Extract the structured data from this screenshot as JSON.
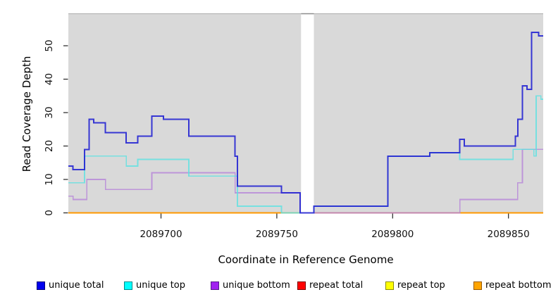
{
  "chart_data": {
    "type": "line",
    "step": true,
    "title": "",
    "xlabel": "Coordinate in Reference Genome",
    "ylabel": "Read Coverage Depth",
    "xlim": [
      2089660,
      2089865
    ],
    "ylim": [
      0,
      58
    ],
    "x_ticks": [
      2089700,
      2089750,
      2089800,
      2089850
    ],
    "y_ticks": [
      0,
      10,
      20,
      30,
      40,
      50
    ],
    "grid": false,
    "plot_background": "#d9d9d9",
    "no_data_gap": {
      "x_start": 2089760,
      "x_end": 2089766
    },
    "series": [
      {
        "name": "repeat total",
        "color": "#e02020",
        "width": 1.5,
        "opacity": 1,
        "above_gap_mask": false,
        "points": [
          [
            2089660,
            0
          ],
          [
            2089865,
            0
          ]
        ]
      },
      {
        "name": "repeat top",
        "color": "#ffff00",
        "width": 1.5,
        "opacity": 1,
        "above_gap_mask": false,
        "points": [
          [
            2089660,
            0
          ],
          [
            2089865,
            0
          ]
        ]
      },
      {
        "name": "repeat bottom",
        "color": "#ff9800",
        "width": 2,
        "opacity": 1,
        "above_gap_mask": false,
        "points": [
          [
            2089660,
            0
          ],
          [
            2089865,
            0
          ]
        ]
      },
      {
        "name": "unique bottom",
        "color": "#b583d8",
        "width": 1.7,
        "opacity": 0.8,
        "above_gap_mask": false,
        "points": [
          [
            2089660,
            5
          ],
          [
            2089662,
            4
          ],
          [
            2089668,
            10
          ],
          [
            2089676,
            7
          ],
          [
            2089696,
            12
          ],
          [
            2089732,
            6
          ],
          [
            2089760,
            0
          ],
          [
            2089829,
            4
          ],
          [
            2089854,
            9
          ],
          [
            2089856,
            19
          ],
          [
            2089865,
            19
          ]
        ]
      },
      {
        "name": "unique top",
        "color": "#5ce1e1",
        "width": 1.8,
        "opacity": 0.8,
        "above_gap_mask": false,
        "points": [
          [
            2089660,
            9
          ],
          [
            2089667,
            17
          ],
          [
            2089685,
            14
          ],
          [
            2089690,
            16
          ],
          [
            2089712,
            11
          ],
          [
            2089733,
            2
          ],
          [
            2089752,
            0
          ],
          [
            2089766,
            2
          ],
          [
            2089798,
            17
          ],
          [
            2089816,
            18
          ],
          [
            2089829,
            16
          ],
          [
            2089852,
            19
          ],
          [
            2089861,
            17
          ],
          [
            2089862,
            35
          ],
          [
            2089864,
            34
          ],
          [
            2089865,
            34
          ]
        ]
      },
      {
        "name": "unique total",
        "color": "#2323d2",
        "width": 2,
        "opacity": 0.9,
        "above_gap_mask": true,
        "points": [
          [
            2089660,
            14
          ],
          [
            2089662,
            13
          ],
          [
            2089667,
            19
          ],
          [
            2089669,
            28
          ],
          [
            2089671,
            27
          ],
          [
            2089676,
            24
          ],
          [
            2089685,
            21
          ],
          [
            2089690,
            23
          ],
          [
            2089696,
            29
          ],
          [
            2089701,
            28
          ],
          [
            2089712,
            23
          ],
          [
            2089732,
            17
          ],
          [
            2089733,
            8
          ],
          [
            2089752,
            6
          ],
          [
            2089760,
            0
          ],
          [
            2089766,
            2
          ],
          [
            2089798,
            17
          ],
          [
            2089816,
            18
          ],
          [
            2089829,
            22
          ],
          [
            2089831,
            20
          ],
          [
            2089853,
            23
          ],
          [
            2089854,
            28
          ],
          [
            2089856,
            38
          ],
          [
            2089858,
            37
          ],
          [
            2089860,
            54
          ],
          [
            2089863,
            53
          ],
          [
            2089865,
            53
          ]
        ]
      }
    ]
  },
  "legend": {
    "items": [
      {
        "label": "unique total",
        "fill": "#0000EE",
        "border": "#00007a"
      },
      {
        "label": "unique top",
        "fill": "#00FFFF",
        "border": "#008b8b"
      },
      {
        "label": "unique bottom",
        "fill": "#A020F0",
        "border": "#551a8b"
      },
      {
        "label": "repeat total",
        "fill": "#FF0000",
        "border": "#7a0000"
      },
      {
        "label": "repeat top",
        "fill": "#FFFF00",
        "border": "#8b8b00"
      },
      {
        "label": "repeat bottom",
        "fill": "#FFA500",
        "border": "#9a5a00"
      }
    ]
  }
}
